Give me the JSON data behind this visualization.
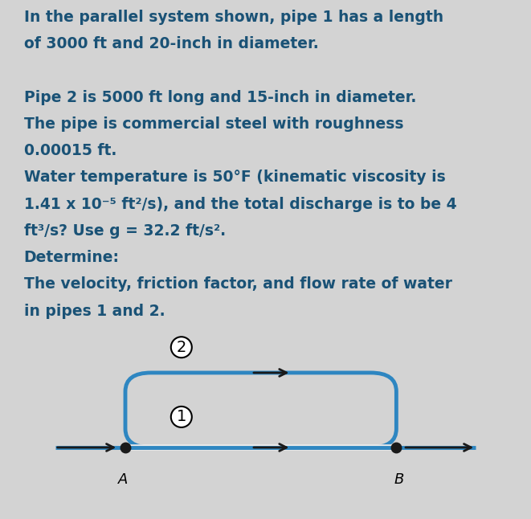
{
  "background_color": "#d3d3d3",
  "diagram_bg": "#f0f0f0",
  "text_color": "#1a5276",
  "pipe_color": "#2e86c1",
  "arrow_color": "#1a1a1a",
  "dot_color": "#1a1a1a",
  "text_lines": [
    "In the parallel system shown, pipe 1 has a length",
    "of 3000 ft and 20-inch in diameter.",
    "",
    "Pipe 2 is 5000 ft long and 15-inch in diameter.",
    "The pipe is commercial steel with roughness",
    "0.00015 ft.",
    "Water temperature is 50°F (kinematic viscosity is",
    "1.41 x 10⁻⁵ ft²/s), and the total discharge is to be 4",
    "ft³/s? Use g = 32.2 ft/s².",
    "Determine:",
    "The velocity, friction factor, and flow rate of water",
    "in pipes 1 and 2."
  ],
  "font_size_text": 13.5,
  "font_family": "DejaVu Sans",
  "pipe1_color": "#2e86c1",
  "pipe2_color": "#2e86c1"
}
